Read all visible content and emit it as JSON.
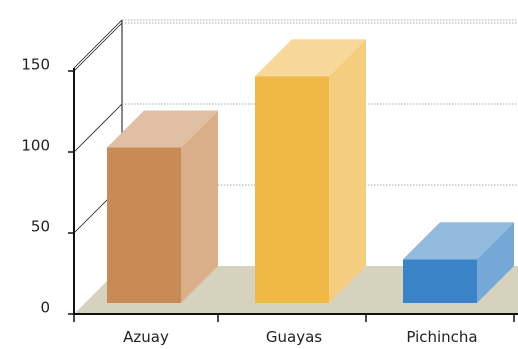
{
  "chart_data": {
    "type": "bar",
    "categories": [
      "Azuay",
      "Guayas",
      "Pichincha"
    ],
    "values": [
      96,
      140,
      27
    ],
    "yticks": [
      "0",
      "50",
      "100",
      "150"
    ],
    "ylim": [
      0,
      150
    ],
    "grid": true,
    "style": "3d",
    "colors": {
      "Azuay": "#c98b55",
      "Guayas": "#f0b847",
      "Pichincha": "#3a83c6",
      "floor": "#d7d2bd",
      "grid": "#aaaaaa",
      "axis": "#111111"
    }
  }
}
